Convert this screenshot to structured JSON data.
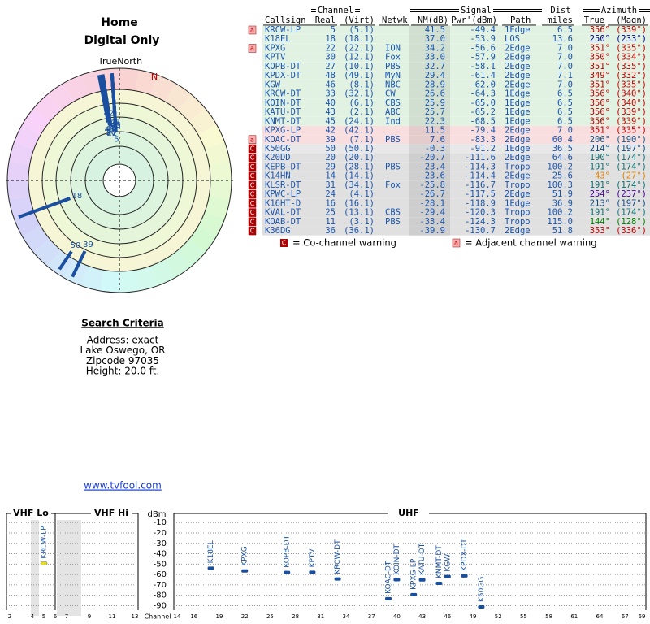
{
  "header": {
    "title": "Home",
    "subtitle": "Digital Only"
  },
  "polar": {
    "north_label": "TrueNorth",
    "magnetic_label": "N"
  },
  "search": {
    "title": "Search Criteria",
    "lines": [
      "Address: exact",
      "Lake Oswego, OR",
      "Zipcode 97035",
      "Height: 20.0 ft."
    ],
    "link": "www.tvfool.com"
  },
  "table": {
    "headers": {
      "channel": "Channel",
      "signal": "Signal",
      "dist": "Dist",
      "azimuth": "Azimuth",
      "callsign": "Callsign",
      "real": "Real",
      "virt": "(Virt)",
      "netwk": "Netwk",
      "nm": "NM(dB)",
      "pwr": "Pwr'(dBm)",
      "path": "Path",
      "miles": "miles",
      "true": "True",
      "magn": "(Magn)"
    },
    "rows": [
      {
        "warning": "a",
        "callsign": "KRCW-LP",
        "real": "5",
        "virt": "(5.1)",
        "nm": "41.5",
        "pwr": "-49.4",
        "path": "1Edge",
        "dist": "6.5",
        "true": "356°",
        "magn": "(339°)",
        "color": "#e2f2e2",
        "az_color": "#c00000"
      },
      {
        "callsign": "K18EL",
        "real": "18",
        "virt": "(18.1)",
        "nm": "37.0",
        "pwr": "-53.9",
        "path": "LOS",
        "dist": "13.6",
        "true": "250°",
        "magn": "(233°)",
        "color": "#e2f2e2",
        "az_color": "#000090"
      },
      {
        "warning": "a",
        "callsign": "KPXG",
        "real": "22",
        "virt": "(22.1)",
        "netwk": "ION",
        "nm": "34.2",
        "pwr": "-56.6",
        "path": "2Edge",
        "dist": "7.0",
        "true": "351°",
        "magn": "(335°)",
        "color": "#e2f2e2",
        "az_color": "#c00000"
      },
      {
        "callsign": "KPTV",
        "real": "30",
        "virt": "(12.1)",
        "netwk": "Fox",
        "nm": "33.0",
        "pwr": "-57.9",
        "path": "2Edge",
        "dist": "7.0",
        "true": "350°",
        "magn": "(334°)",
        "color": "#e2f2e2",
        "az_color": "#c00000"
      },
      {
        "callsign": "KOPB-DT",
        "real": "27",
        "virt": "(10.1)",
        "netwk": "PBS",
        "nm": "32.7",
        "pwr": "-58.1",
        "path": "2Edge",
        "dist": "7.0",
        "true": "351°",
        "magn": "(335°)",
        "color": "#e2f2e2",
        "az_color": "#c00000"
      },
      {
        "callsign": "KPDX-DT",
        "real": "48",
        "virt": "(49.1)",
        "netwk": "MyN",
        "nm": "29.4",
        "pwr": "-61.4",
        "path": "2Edge",
        "dist": "7.1",
        "true": "349°",
        "magn": "(332°)",
        "color": "#e2f2e2",
        "az_color": "#c00000"
      },
      {
        "callsign": "KGW",
        "real": "46",
        "virt": "(8.1)",
        "netwk": "NBC",
        "nm": "28.9",
        "pwr": "-62.0",
        "path": "2Edge",
        "dist": "7.0",
        "true": "351°",
        "magn": "(335°)",
        "color": "#e2f2e2",
        "az_color": "#c00000"
      },
      {
        "callsign": "KRCW-DT",
        "real": "33",
        "virt": "(32.1)",
        "netwk": "CW",
        "nm": "26.6",
        "pwr": "-64.3",
        "path": "1Edge",
        "dist": "6.5",
        "true": "356°",
        "magn": "(340°)",
        "color": "#e2f2e2",
        "az_color": "#c00000"
      },
      {
        "callsign": "KOIN-DT",
        "real": "40",
        "virt": "(6.1)",
        "netwk": "CBS",
        "nm": "25.9",
        "pwr": "-65.0",
        "path": "1Edge",
        "dist": "6.5",
        "true": "356°",
        "magn": "(340°)",
        "color": "#e2f2e2",
        "az_color": "#c00000"
      },
      {
        "callsign": "KATU-DT",
        "real": "43",
        "virt": "(2.1)",
        "netwk": "ABC",
        "nm": "25.7",
        "pwr": "-65.2",
        "path": "1Edge",
        "dist": "6.5",
        "true": "356°",
        "magn": "(339°)",
        "color": "#e2f2e2",
        "az_color": "#c00000"
      },
      {
        "callsign": "KNMT-DT",
        "real": "45",
        "virt": "(24.1)",
        "netwk": "Ind",
        "nm": "22.3",
        "pwr": "-68.5",
        "path": "1Edge",
        "dist": "6.5",
        "true": "356°",
        "magn": "(339°)",
        "color": "#e2f2e2",
        "az_color": "#c00000"
      },
      {
        "callsign": "KPXG-LP",
        "real": "42",
        "virt": "(42.1)",
        "nm": "11.5",
        "pwr": "-79.4",
        "path": "2Edge",
        "dist": "7.0",
        "true": "351°",
        "magn": "(335°)",
        "color": "#f8dede",
        "az_color": "#c00000"
      },
      {
        "warning": "a",
        "callsign": "KOAC-DT",
        "real": "39",
        "virt": "(7.1)",
        "netwk": "PBS",
        "nm": "7.6",
        "pwr": "-83.3",
        "path": "2Edge",
        "dist": "60.4",
        "true": "206°",
        "magn": "(190°)",
        "color": "#f8dede",
        "az_color": "#105a8a"
      },
      {
        "warning": "C",
        "callsign": "K50GG",
        "real": "50",
        "virt": "(50.1)",
        "nm": "-0.3",
        "pwr": "-91.2",
        "path": "1Edge",
        "dist": "36.5",
        "true": "214°",
        "magn": "(197°)",
        "color": "#e8e8e8",
        "az_color": "#104a80"
      },
      {
        "warning": "C",
        "callsign": "K20DD",
        "real": "20",
        "virt": "(20.1)",
        "nm": "-20.7",
        "pwr": "-111.6",
        "path": "2Edge",
        "dist": "64.6",
        "true": "190°",
        "magn": "(174°)",
        "color": "#e0e0e0",
        "az_color": "#107070"
      },
      {
        "warning": "C",
        "callsign": "KEPB-DT",
        "real": "29",
        "virt": "(28.1)",
        "netwk": "PBS",
        "nm": "-23.4",
        "pwr": "-114.3",
        "path": "Tropo",
        "dist": "100.2",
        "true": "191°",
        "magn": "(174°)",
        "color": "#e0e0e0",
        "az_color": "#107070"
      },
      {
        "warning": "C",
        "callsign": "K14HN",
        "real": "14",
        "virt": "(14.1)",
        "nm": "-23.6",
        "pwr": "-114.4",
        "path": "2Edge",
        "dist": "25.6",
        "true": "43°",
        "magn": "(27°)",
        "color": "#e0e0e0",
        "az_color": "#e08000"
      },
      {
        "warning": "C",
        "callsign": "KLSR-DT",
        "real": "31",
        "virt": "(34.1)",
        "netwk": "Fox",
        "nm": "-25.8",
        "pwr": "-116.7",
        "path": "Tropo",
        "dist": "100.3",
        "true": "191°",
        "magn": "(174°)",
        "color": "#e0e0e0",
        "az_color": "#107070"
      },
      {
        "warning": "C",
        "callsign": "KPWC-LP",
        "real": "24",
        "virt": "(4.1)",
        "nm": "-26.7",
        "pwr": "-117.5",
        "path": "2Edge",
        "dist": "51.9",
        "true": "254°",
        "magn": "(237°)",
        "color": "#e0e0e0",
        "az_color": "#400090"
      },
      {
        "warning": "C",
        "callsign": "K16HT-D",
        "real": "16",
        "virt": "(16.1)",
        "nm": "-28.1",
        "pwr": "-118.9",
        "path": "1Edge",
        "dist": "36.9",
        "true": "213°",
        "magn": "(197°)",
        "color": "#e0e0e0",
        "az_color": "#104a80"
      },
      {
        "warning": "C",
        "callsign": "KVAL-DT",
        "real": "25",
        "virt": "(13.1)",
        "netwk": "CBS",
        "nm": "-29.4",
        "pwr": "-120.3",
        "path": "Tropo",
        "dist": "100.2",
        "true": "191°",
        "magn": "(174°)",
        "color": "#e0e0e0",
        "az_color": "#107070"
      },
      {
        "warning": "C",
        "callsign": "KOAB-DT",
        "real": "11",
        "virt": "(3.1)",
        "netwk": "PBS",
        "nm": "-33.4",
        "pwr": "-124.3",
        "path": "Tropo",
        "dist": "115.0",
        "true": "144°",
        "magn": "(128°)",
        "color": "#e0e0e0",
        "az_color": "#008000"
      },
      {
        "warning": "C",
        "callsign": "K36DG",
        "real": "36",
        "virt": "(36.1)",
        "nm": "-39.9",
        "pwr": "-130.7",
        "path": "2Edge",
        "dist": "51.8",
        "true": "353°",
        "magn": "(336°)",
        "color": "#e0e0e0",
        "az_color": "#c00000"
      }
    ],
    "legend": {
      "co_channel": {
        "icon": "C",
        "text": "= Co-channel warning"
      },
      "adjacent": {
        "icon": "a",
        "text": "= Adjacent channel warning"
      }
    }
  },
  "spectrum": {
    "vhf_lo": "VHF Lo",
    "vhf_hi": "VHF Hi",
    "uhf": "UHF",
    "y_label": "dBm",
    "x_label": "Channel",
    "ylim": [
      -2,
      -92
    ],
    "yticks": [
      -10,
      -20,
      -30,
      -40,
      -50,
      -60,
      -70,
      -80,
      -90
    ],
    "vhf_xlim": [
      2,
      13
    ],
    "vhf_ticks": [
      2,
      4,
      5,
      6,
      7,
      9,
      11,
      13
    ],
    "uhf_xlim": [
      14,
      69
    ],
    "uhf_ticks": [
      14,
      16,
      19,
      22,
      25,
      28,
      31,
      34,
      37,
      40,
      43,
      46,
      49,
      52,
      55,
      58,
      61,
      64,
      67,
      69
    ],
    "vhf_color": "#e8dc20",
    "uhf_color": "#1a4fa0"
  }
}
